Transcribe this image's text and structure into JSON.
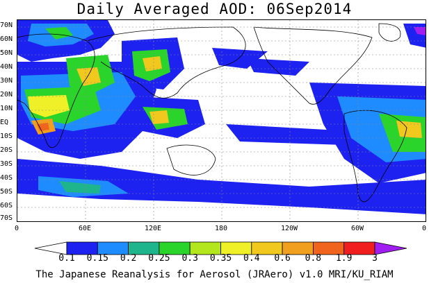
{
  "title": "Daily Averaged AOD: 06Sep2014",
  "credit": "The Japanese Reanalysis for Aerosol (JRAero) v1.0 MRI/KU_RIAM",
  "lat_labels": [
    "70N",
    "60N",
    "50N",
    "40N",
    "30N",
    "20N",
    "10N",
    "EQ",
    "10S",
    "20S",
    "30S",
    "40S",
    "50S",
    "60S",
    "70S"
  ],
  "lon_labels": [
    "0",
    "60E",
    "120E",
    "180",
    "120W",
    "60W",
    "0"
  ],
  "colorbar": {
    "labels": [
      "0.1",
      "0.15",
      "0.2",
      "0.25",
      "0.3",
      "0.35",
      "0.4",
      "0.6",
      "0.8",
      "1.9",
      "3"
    ],
    "colors": [
      "#ffffff",
      "#1e22f0",
      "#1e8cff",
      "#1eb48c",
      "#2ad42a",
      "#b4e61e",
      "#f0f028",
      "#f0c81e",
      "#f0a01e",
      "#f0641e",
      "#f01e1e",
      "#a01ef0"
    ]
  }
}
